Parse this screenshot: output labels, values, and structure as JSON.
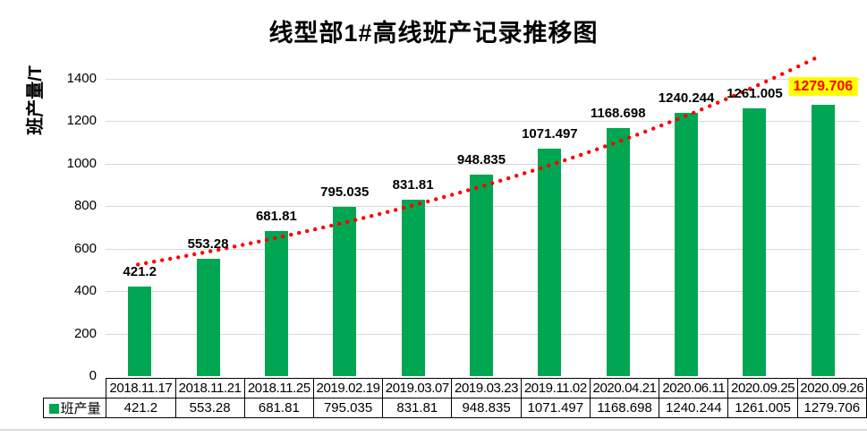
{
  "chart_data": {
    "type": "bar",
    "title": "线型部1#高线班产记录推移图",
    "ylabel": "班产量/T",
    "series_name": "班产量",
    "categories": [
      "2018.11.17",
      "2018.11.21",
      "2018.11.25",
      "2019.02.19",
      "2019.03.07",
      "2019.03.23",
      "2019.11.02",
      "2020.04.21",
      "2020.06.11",
      "2020.09.25",
      "2020.09.26"
    ],
    "values": [
      421.2,
      553.28,
      681.81,
      795.035,
      831.81,
      948.835,
      1071.497,
      1168.698,
      1240.244,
      1261.005,
      1279.706
    ],
    "value_labels": [
      "421.2",
      "553.28",
      "681.81",
      "795.035",
      "831.81",
      "948.835",
      "1071.497",
      "1168.698",
      "1240.244",
      "1261.005",
      "1279.706"
    ],
    "ylim": [
      0,
      1400
    ],
    "yticks": [
      0,
      200,
      400,
      600,
      800,
      1000,
      1200,
      1400
    ],
    "grid": true,
    "legend_position": "table-row-header",
    "bar_color": "#00A651",
    "gridline_color": "#D9D9D9",
    "label_color": "#000000",
    "trendline": {
      "type": "exponential",
      "style": "dotted",
      "color": "#FF0000",
      "start_value": 527,
      "end_value": 1515
    },
    "last_label_highlight": {
      "background": "#FFFF00",
      "text_color": "#FF0000"
    }
  }
}
